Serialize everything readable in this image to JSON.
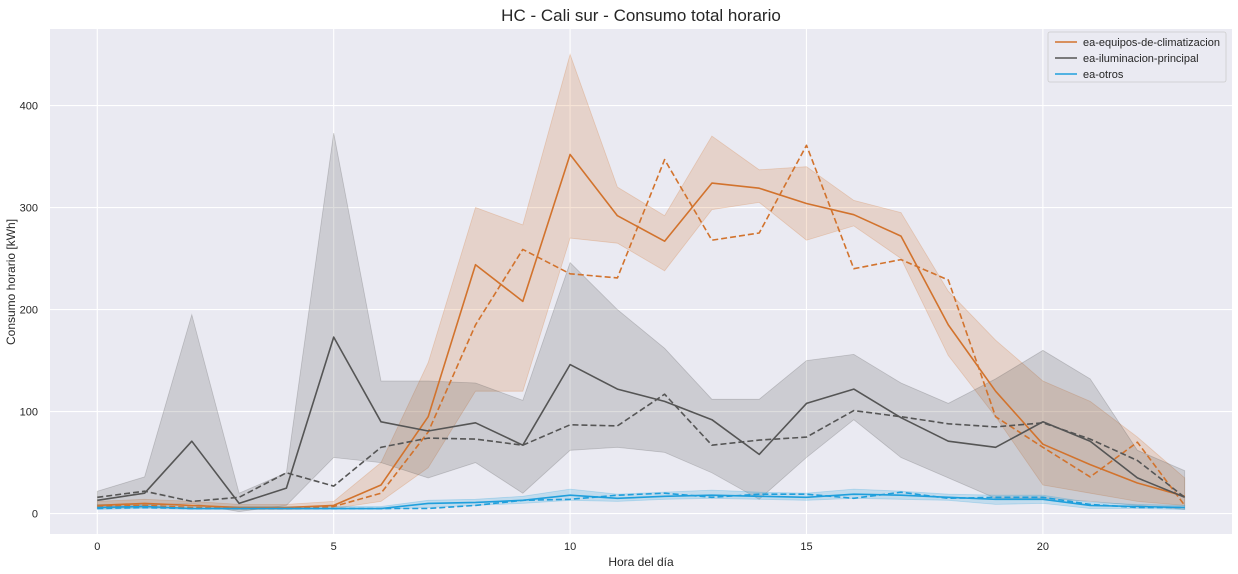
{
  "chart_data": {
    "type": "line",
    "title": "HC - Cali sur - Consumo total horario",
    "xlabel": "Hora del día",
    "ylabel": "Consumo horario [kWh]",
    "xlim": [
      -1,
      24
    ],
    "ylim": [
      -20,
      475
    ],
    "xticks": [
      0,
      5,
      10,
      15,
      20
    ],
    "yticks": [
      0,
      100,
      200,
      300,
      400
    ],
    "grid": true,
    "background": "#EAEAF2",
    "legend_position": "top-right",
    "x": [
      0,
      1,
      2,
      3,
      4,
      5,
      6,
      7,
      8,
      9,
      10,
      11,
      12,
      13,
      14,
      15,
      16,
      17,
      18,
      19,
      20,
      21,
      22,
      23
    ],
    "series": [
      {
        "name": "ea-equipos-de-climatizacion",
        "color": "#D2732D",
        "mean": [
          8,
          10,
          8,
          6,
          6,
          8,
          28,
          95,
          244,
          208,
          352,
          292,
          267,
          324,
          319,
          304,
          293,
          272,
          185,
          120,
          68,
          48,
          30,
          17
        ],
        "lower": [
          5,
          6,
          5,
          4,
          4,
          5,
          12,
          45,
          120,
          120,
          270,
          265,
          238,
          298,
          305,
          268,
          282,
          250,
          155,
          95,
          28,
          20,
          12,
          8
        ],
        "upper": [
          12,
          14,
          12,
          9,
          9,
          12,
          50,
          148,
          300,
          283,
          450,
          320,
          292,
          370,
          337,
          340,
          307,
          295,
          218,
          170,
          130,
          110,
          75,
          35
        ],
        "dashed": [
          7,
          8,
          6,
          5,
          5,
          7,
          20,
          80,
          185,
          259,
          235,
          231,
          347,
          268,
          275,
          361,
          240,
          249,
          229,
          95,
          65,
          36,
          70,
          8
        ]
      },
      {
        "name": "ea-iluminacion-principal",
        "color": "#555555",
        "mean": [
          13,
          20,
          71,
          10,
          25,
          173,
          90,
          81,
          89,
          67,
          146,
          122,
          110,
          92,
          58,
          108,
          122,
          94,
          71,
          65,
          90,
          71,
          35,
          16
        ],
        "lower": [
          5,
          8,
          10,
          2,
          8,
          55,
          50,
          35,
          50,
          20,
          62,
          65,
          60,
          40,
          14,
          55,
          92,
          55,
          35,
          15,
          15,
          12,
          8,
          4
        ],
        "upper": [
          22,
          36,
          195,
          20,
          40,
          373,
          130,
          130,
          128,
          111,
          246,
          200,
          162,
          112,
          112,
          150,
          156,
          128,
          108,
          132,
          160,
          132,
          62,
          42
        ],
        "dashed": [
          16,
          22,
          12,
          16,
          40,
          27,
          65,
          74,
          73,
          67,
          87,
          86,
          117,
          67,
          72,
          75,
          101,
          95,
          88,
          85,
          89,
          73,
          52,
          16
        ]
      },
      {
        "name": "ea-otros",
        "color": "#1F9FDC",
        "mean": [
          6,
          7,
          5,
          5,
          5,
          5,
          5,
          10,
          11,
          13,
          18,
          15,
          17,
          18,
          17,
          16,
          19,
          18,
          16,
          14,
          14,
          8,
          7,
          6
        ],
        "lower": [
          4,
          5,
          4,
          4,
          4,
          4,
          4,
          6,
          8,
          10,
          13,
          12,
          14,
          15,
          14,
          13,
          15,
          14,
          13,
          9,
          10,
          5,
          5,
          4
        ],
        "upper": [
          9,
          9,
          7,
          7,
          7,
          7,
          7,
          13,
          14,
          17,
          24,
          19,
          21,
          23,
          21,
          20,
          24,
          22,
          19,
          18,
          18,
          11,
          9,
          8
        ],
        "dashed": [
          5,
          6,
          5,
          5,
          5,
          5,
          5,
          5,
          8,
          13,
          14,
          18,
          20,
          16,
          19,
          19,
          15,
          21,
          15,
          16,
          16,
          9,
          6,
          6
        ]
      }
    ]
  }
}
